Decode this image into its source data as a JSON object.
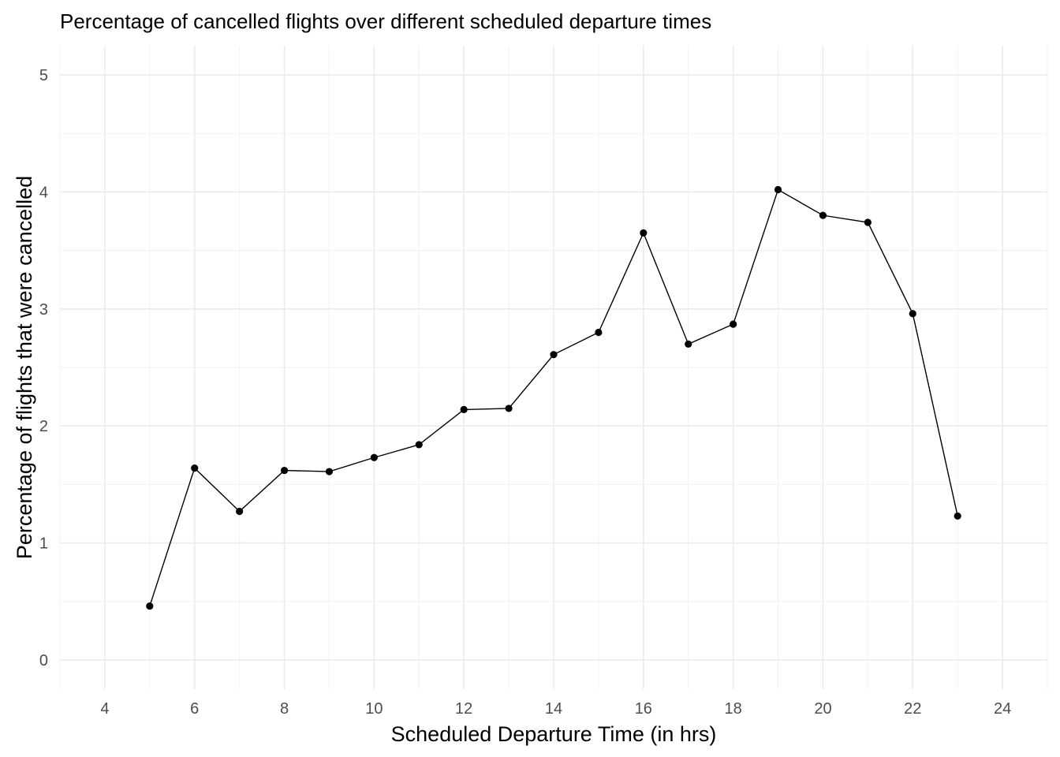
{
  "chart_data": {
    "type": "line",
    "title": "Percentage of cancelled flights over different scheduled departure times",
    "xlabel": "Scheduled Departure Time (in hrs)",
    "ylabel": "Percentage of flights that were cancelled",
    "xlim": [
      3,
      25
    ],
    "ylim": [
      -0.25,
      5.25
    ],
    "x_ticks": [
      4,
      6,
      8,
      10,
      12,
      14,
      16,
      18,
      20,
      22,
      24
    ],
    "y_ticks": [
      0,
      1,
      2,
      3,
      4,
      5
    ],
    "x_minor_ticks": [
      3,
      5,
      7,
      9,
      11,
      13,
      15,
      17,
      19,
      21,
      23,
      25
    ],
    "y_minor_ticks": [
      0.5,
      1.5,
      2.5,
      3.5,
      4.5
    ],
    "grid": true,
    "legend": "none",
    "series": [
      {
        "x": [
          5,
          6,
          7,
          8,
          9,
          10,
          11,
          12,
          13,
          14,
          15,
          16,
          17,
          18,
          19,
          20,
          21,
          22,
          23
        ],
        "y": [
          0.46,
          1.64,
          1.27,
          1.62,
          1.61,
          1.73,
          1.84,
          2.14,
          2.15,
          2.61,
          2.8,
          3.65,
          2.7,
          2.87,
          4.02,
          3.8,
          3.74,
          2.96,
          1.23
        ],
        "color": "#000000"
      }
    ]
  }
}
